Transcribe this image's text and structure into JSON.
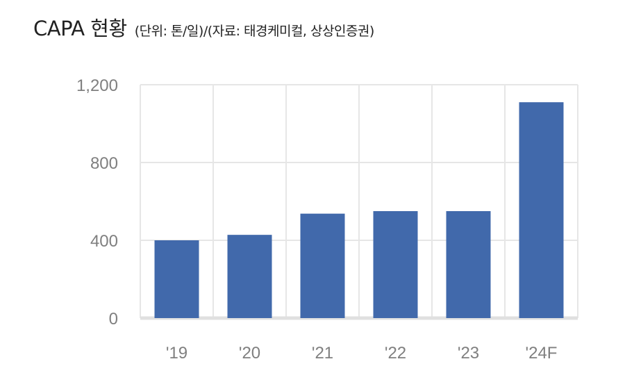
{
  "header": {
    "title": "CAPA 현황",
    "subtitle": "(단위: 톤/일)/(자료: 태경케미컬, 상상인증권)"
  },
  "chart_data": {
    "type": "bar",
    "title": "CAPA 현황",
    "subtitle": "(단위: 톤/일)/(자료: 태경케미컬, 상상인증권)",
    "xlabel": "",
    "ylabel": "",
    "categories": [
      "'19",
      "'20",
      "'21",
      "'22",
      "'23",
      "'24F"
    ],
    "values": [
      400,
      428,
      537,
      550,
      550,
      1110
    ],
    "ylim": [
      0,
      1200
    ],
    "yticks": [
      0,
      400,
      800,
      1200
    ],
    "ytick_labels": [
      "0",
      "400",
      "800",
      "1,200"
    ],
    "grid": true,
    "legend": "none",
    "bar_color": "#4169ab",
    "grid_color": "#e6e6e6",
    "tick_color": "#7f7f7f"
  }
}
